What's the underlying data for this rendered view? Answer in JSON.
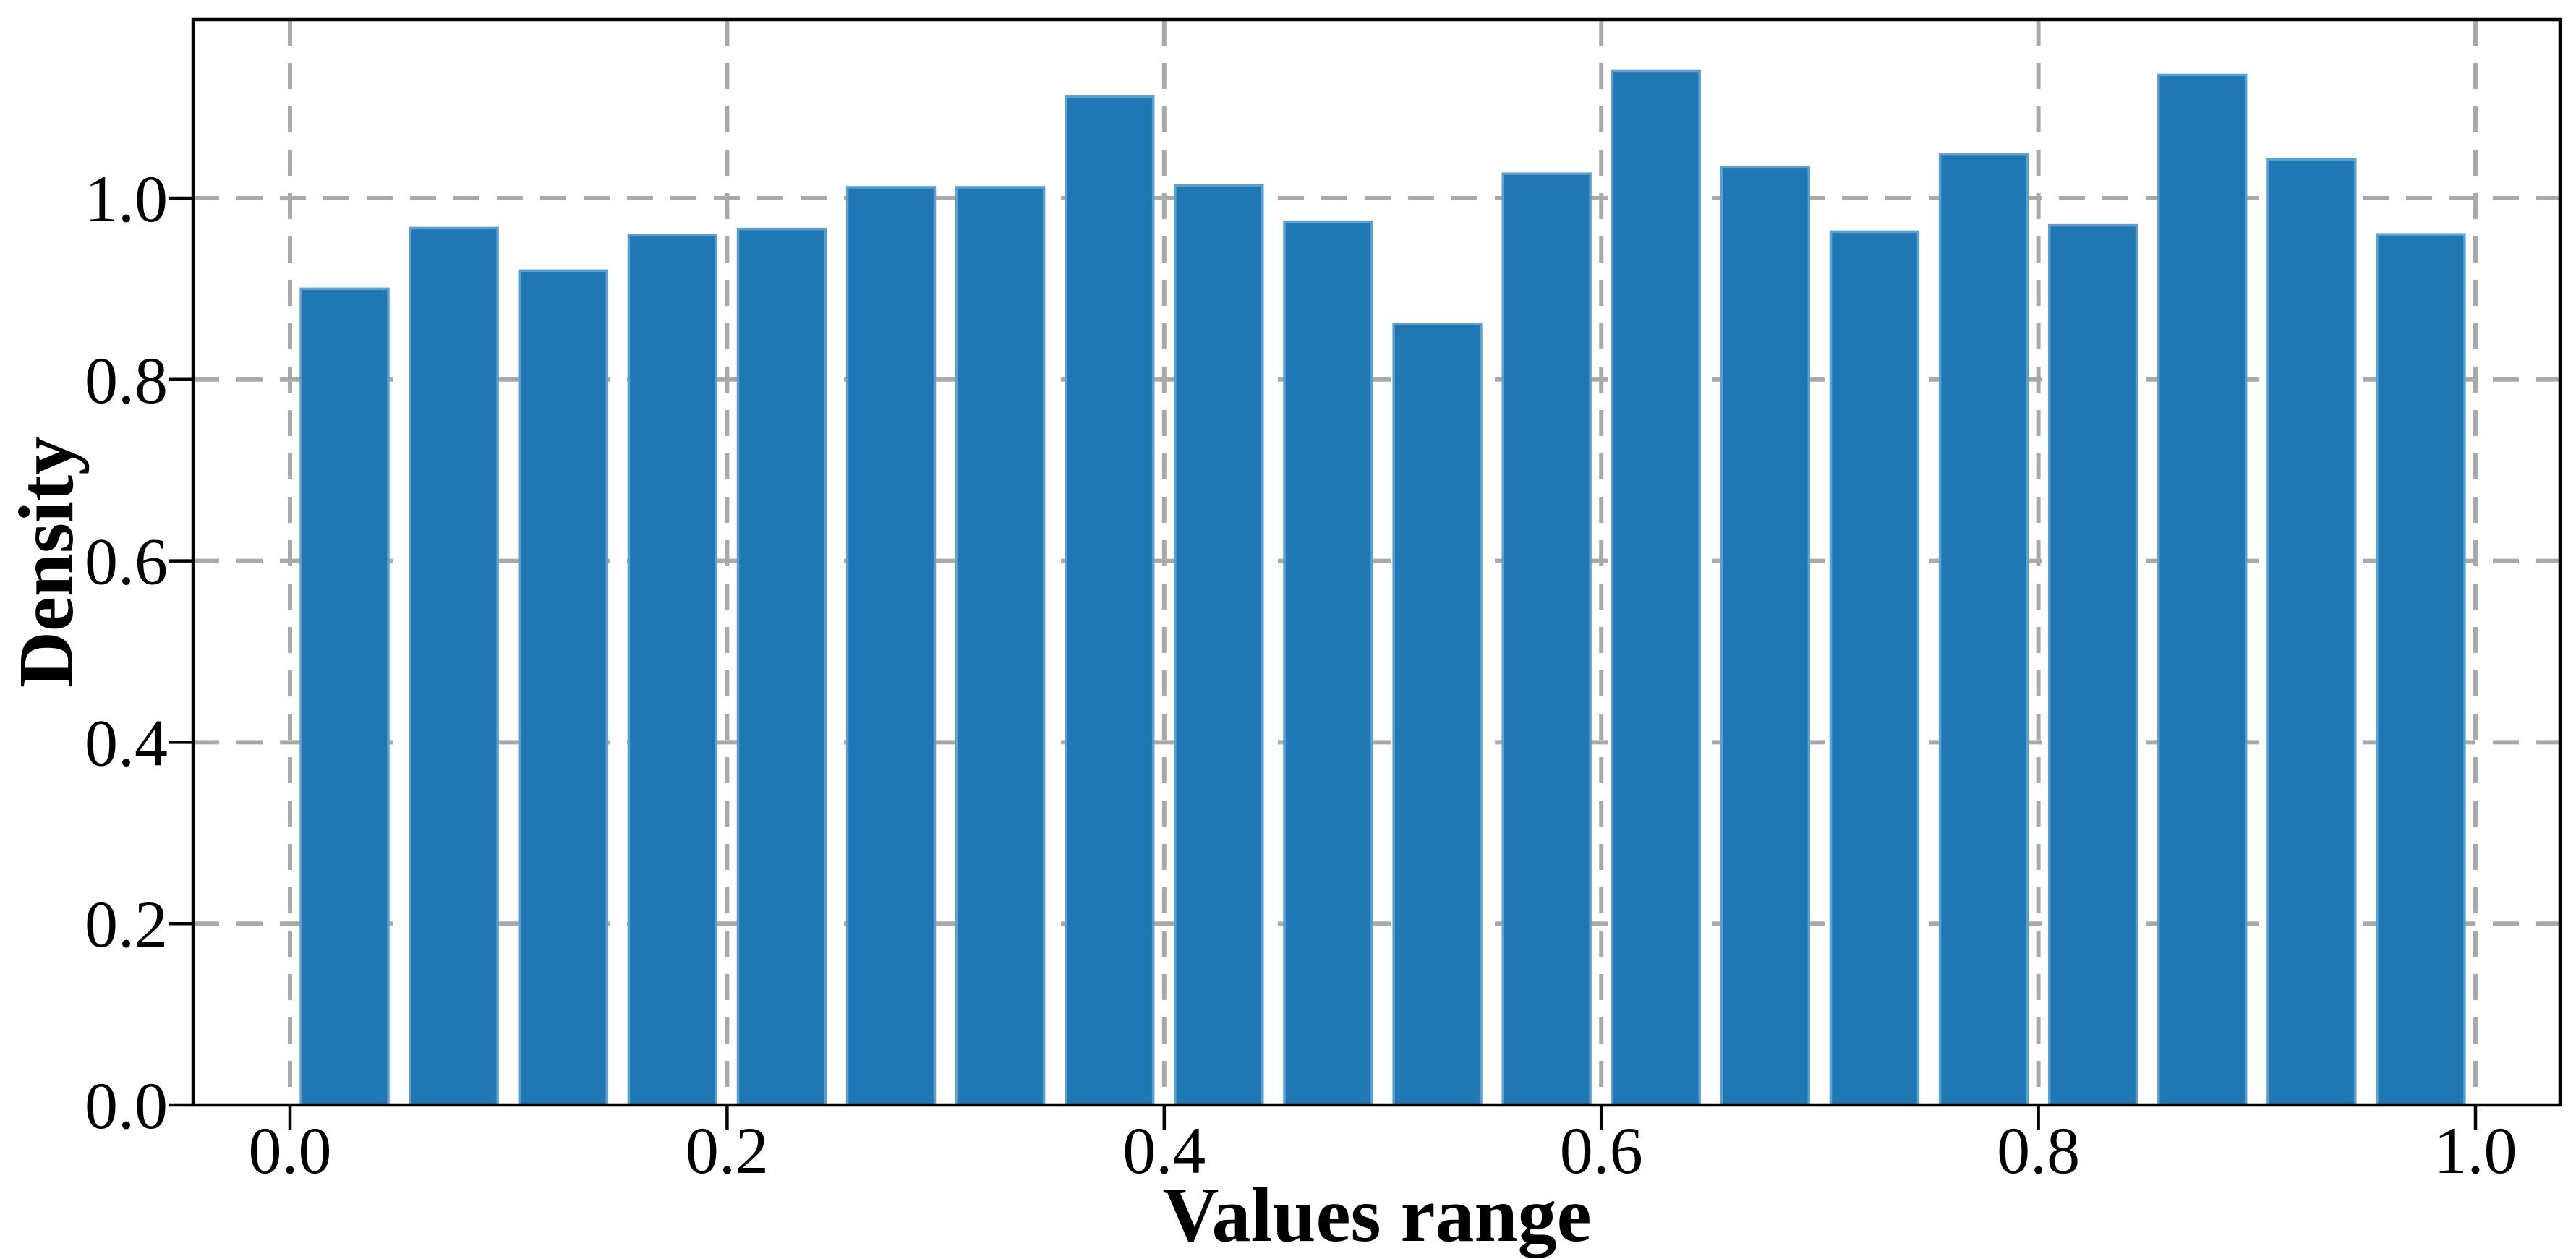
{
  "chart_data": {
    "type": "bar",
    "subtype": "histogram",
    "title": "",
    "xlabel": "Values range",
    "ylabel": "Density",
    "bin_start": 0.0,
    "bin_width": 0.05,
    "bin_centers": [
      0.025,
      0.075,
      0.125,
      0.175,
      0.225,
      0.275,
      0.325,
      0.375,
      0.425,
      0.475,
      0.525,
      0.575,
      0.625,
      0.675,
      0.725,
      0.775,
      0.825,
      0.875,
      0.925,
      0.975
    ],
    "values": [
      0.9,
      0.967,
      0.92,
      0.959,
      0.966,
      1.012,
      1.012,
      1.112,
      1.014,
      0.974,
      0.861,
      1.027,
      1.14,
      1.034,
      0.963,
      1.048,
      0.97,
      1.136,
      1.043,
      0.96
    ],
    "x_ticks": [
      0.0,
      0.2,
      0.4,
      0.6,
      0.8,
      1.0
    ],
    "x_tick_labels": [
      "0.0",
      "0.2",
      "0.4",
      "0.6",
      "0.8",
      "1.0"
    ],
    "y_ticks": [
      0.0,
      0.2,
      0.4,
      0.6,
      0.8,
      1.0
    ],
    "y_tick_labels": [
      "0.0",
      "0.2",
      "0.4",
      "0.6",
      "0.8",
      "1.0"
    ],
    "xlim": [
      -0.044,
      1.038
    ],
    "ylim": [
      0,
      1.197
    ],
    "grid": true,
    "grid_style": "dashed",
    "legend": false,
    "colors": {
      "bar_fill": "#1f77b4",
      "bar_edge": "#5ba0d0",
      "grid": "#a9a9a9",
      "axis": "#000000",
      "background": "#ffffff"
    }
  }
}
